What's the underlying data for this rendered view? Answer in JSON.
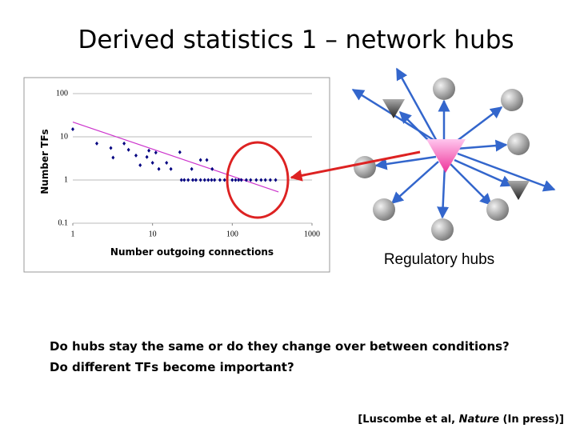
{
  "title": "Derived statistics 1 – network hubs",
  "chart_data": {
    "type": "scatter",
    "x_label": "Number outgoing connections",
    "y_label": "Number TFs",
    "x": [
      1,
      2,
      3,
      3.2,
      4.4,
      5,
      6.2,
      7,
      8.5,
      9,
      10,
      11,
      12,
      15,
      17,
      22,
      31,
      40,
      48,
      56,
      23,
      25,
      28,
      32,
      35,
      40,
      45,
      50,
      55,
      60,
      70,
      80,
      100,
      110,
      120,
      130,
      150,
      170,
      200,
      230,
      260,
      300,
      350
    ],
    "values": [
      15,
      7,
      5.5,
      3.3,
      7,
      5,
      3.7,
      2.2,
      3.4,
      4.8,
      2.5,
      4.3,
      1.8,
      2.5,
      1.8,
      4.4,
      1.8,
      2.9,
      2.9,
      1.8,
      1,
      1,
      1,
      1,
      1,
      1,
      1,
      1,
      1,
      1,
      1,
      1,
      1,
      1,
      1,
      1,
      1,
      1,
      1,
      1,
      1,
      1,
      1
    ],
    "color": "#000080",
    "trendline": {
      "x": [
        1,
        380
      ],
      "values": [
        22,
        0.53
      ],
      "color": "#cc33cc"
    },
    "xlim": [
      1,
      1000
    ],
    "ylim": [
      0.1,
      100
    ],
    "xticks": [
      1,
      10,
      100,
      1000
    ],
    "yticks": [
      0.1,
      1,
      10,
      100
    ],
    "log_x": true,
    "log_y": true,
    "grid": "y"
  },
  "diagram": {
    "label": "Regulatory hubs"
  },
  "questions": [
    "Do hubs stay the same or do they change over between conditions?",
    "Do different TFs become important?"
  ],
  "citation": {
    "prefix": "[Luscombe et al, ",
    "journal": "Nature",
    "suffix": " (In press)]"
  }
}
